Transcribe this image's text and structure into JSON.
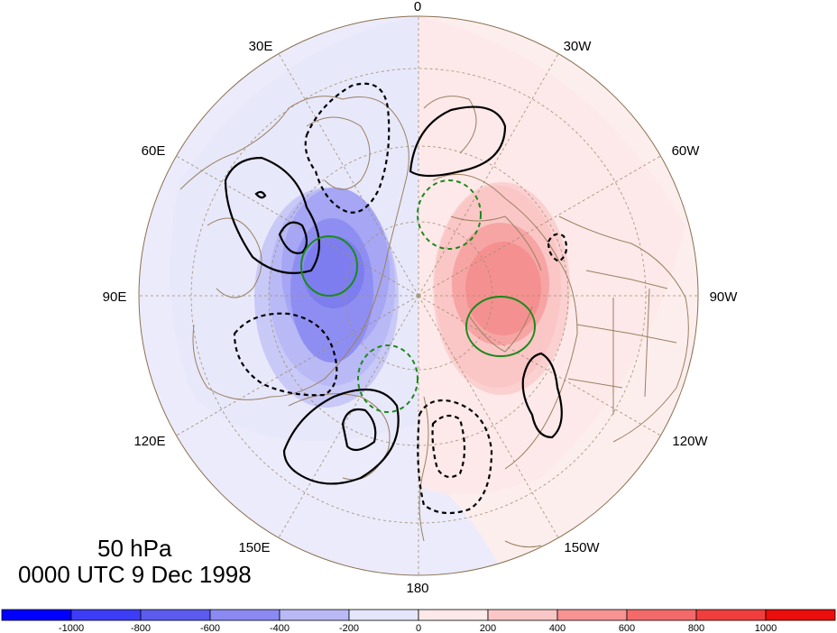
{
  "map": {
    "projection": "north-polar-stereographic",
    "longitude_labels": [
      "0",
      "30W",
      "60W",
      "90W",
      "120W",
      "150W",
      "180",
      "150E",
      "120E",
      "90E",
      "60E",
      "30E"
    ],
    "fill_colors": {
      "neg_1000": "#0000ff",
      "neg_800": "#3d3df7",
      "neg_600": "#5b5bee",
      "neg_400": "#8a8af2",
      "neg_200": "#b9b9f6",
      "neg_0": "#e6e6fa",
      "pos_0": "#fde9e9",
      "pos_200": "#fbc6c6",
      "pos_400": "#f79393",
      "pos_600": "#f46a6a",
      "pos_800": "#f03e3e",
      "pos_1000": "#ec0d0d"
    },
    "land_outline_color": "#9a8060",
    "grid_color": "#a08f70",
    "contour_colors": {
      "positive": "#000000",
      "negative": "#000000",
      "green": "#1a8a1a"
    }
  },
  "labels": {
    "level": "50 hPa",
    "time": "0000 UTC 9 Dec 1998"
  },
  "colorbar": {
    "ticks": [
      "-1000",
      "-800",
      "-600",
      "-400",
      "-200",
      "0",
      "200",
      "400",
      "600",
      "800",
      "1000"
    ],
    "colors": [
      "#0000ff",
      "#3d3df7",
      "#5b5bee",
      "#8a8af2",
      "#b9b9f6",
      "#e6e6fa",
      "#fde9e9",
      "#fbc6c6",
      "#f79393",
      "#f46a6a",
      "#f03e3e",
      "#ec0d0d"
    ]
  }
}
